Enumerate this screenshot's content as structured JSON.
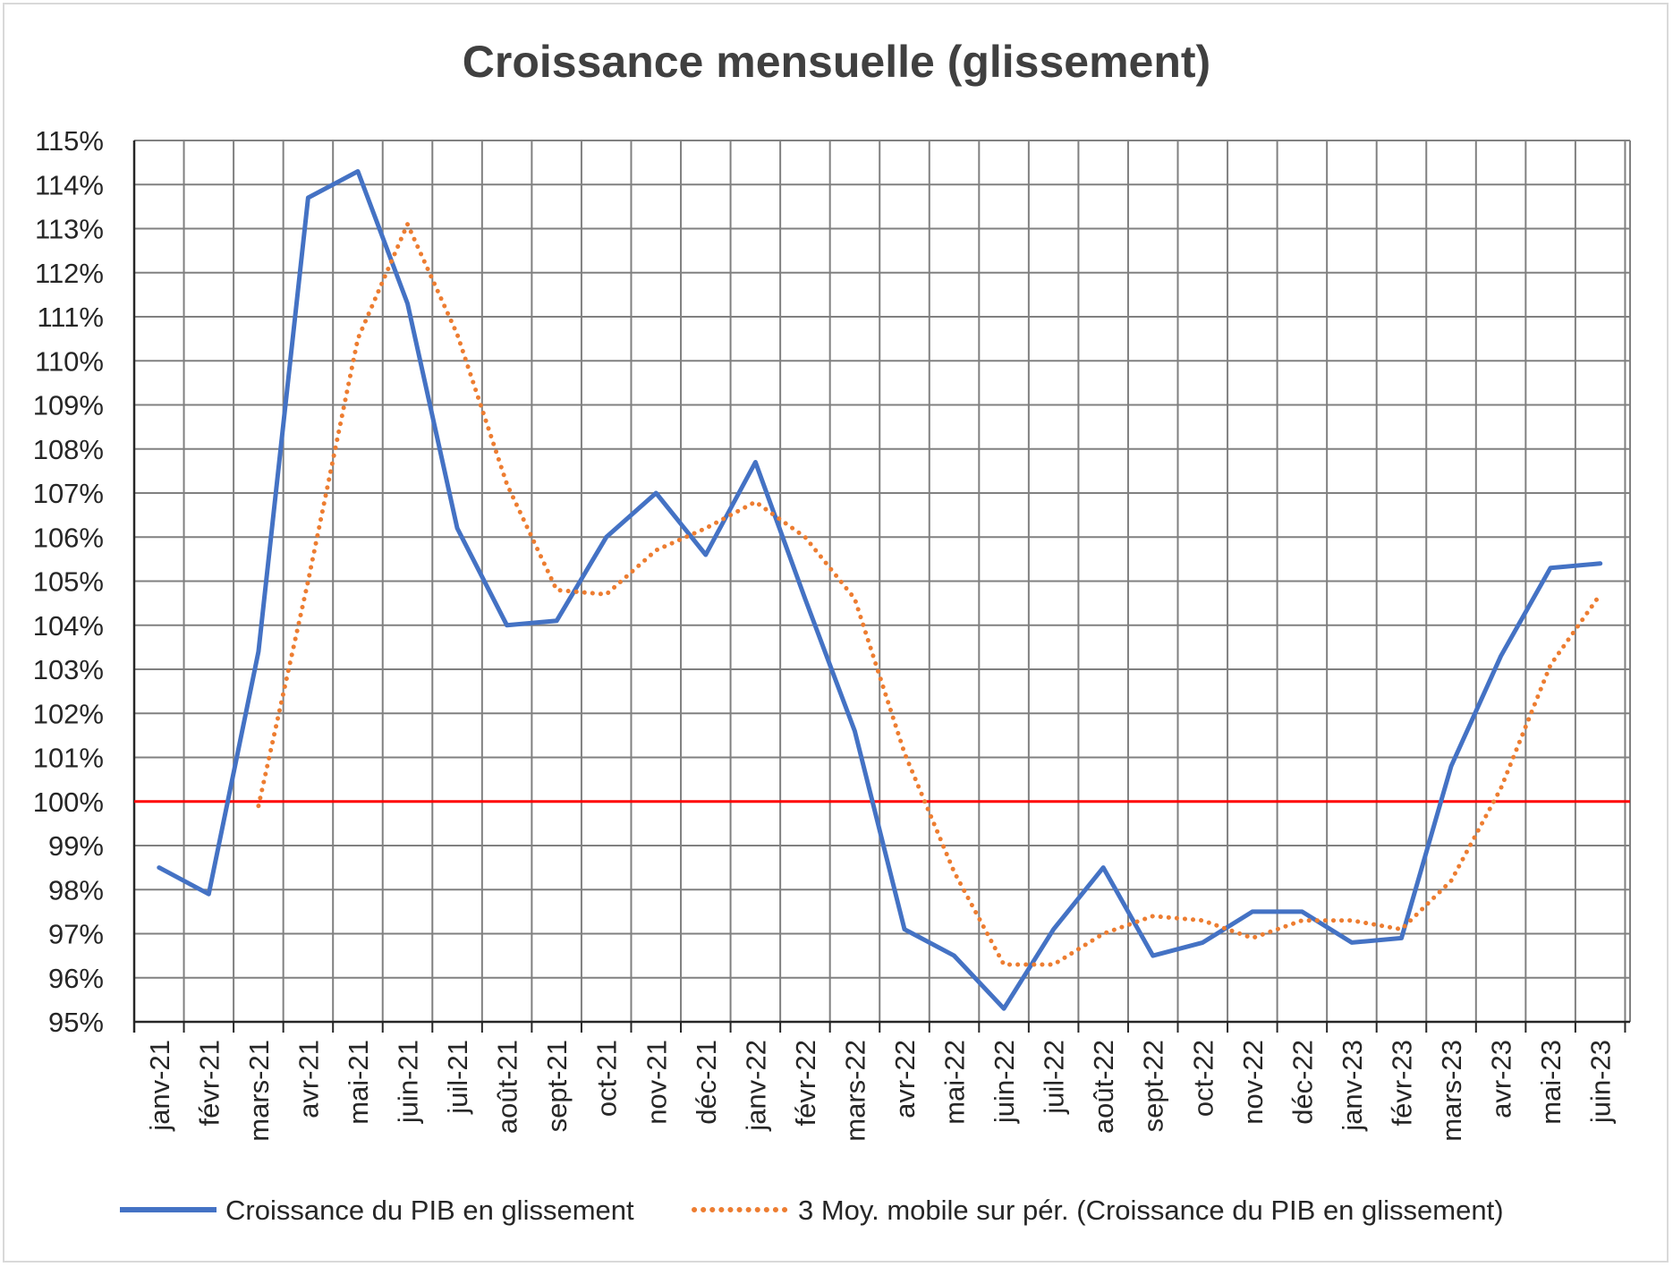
{
  "chart_data": {
    "type": "line",
    "title": "Croissance mensuelle (glissement)",
    "xlabel": "",
    "ylabel": "",
    "ylim": [
      95,
      115
    ],
    "y_unit": "%",
    "y_ticks": [
      "95%",
      "96%",
      "97%",
      "98%",
      "99%",
      "100%",
      "101%",
      "102%",
      "103%",
      "104%",
      "105%",
      "106%",
      "107%",
      "108%",
      "109%",
      "110%",
      "111%",
      "112%",
      "113%",
      "114%",
      "115%"
    ],
    "categories": [
      "janv-21",
      "févr-21",
      "mars-21",
      "avr-21",
      "mai-21",
      "juin-21",
      "juil-21",
      "août-21",
      "sept-21",
      "oct-21",
      "nov-21",
      "déc-21",
      "janv-22",
      "févr-22",
      "mars-22",
      "avr-22",
      "mai-22",
      "juin-22",
      "juil-22",
      "août-22",
      "sept-22",
      "oct-22",
      "nov-22",
      "déc-22",
      "janv-23",
      "févr-23",
      "mars-23",
      "avr-23",
      "mai-23",
      "juin-23"
    ],
    "series": [
      {
        "name": "Croissance du PIB en glissement",
        "color": "#4472c4",
        "style": "solid",
        "values": [
          98.5,
          97.9,
          103.4,
          113.7,
          114.3,
          111.3,
          106.2,
          104.0,
          104.1,
          106.0,
          107.0,
          105.6,
          107.7,
          104.6,
          101.6,
          97.1,
          96.5,
          95.3,
          97.1,
          98.5,
          96.5,
          96.8,
          97.5,
          97.5,
          96.8,
          96.9,
          100.8,
          103.3,
          105.3,
          105.4
        ]
      },
      {
        "name": "3 Moy. mobile sur pér. (Croissance du PIB en glissement)",
        "color": "#ed7d31",
        "style": "dotted",
        "values": [
          null,
          null,
          99.9,
          105.0,
          110.5,
          113.1,
          110.6,
          107.2,
          104.8,
          104.7,
          105.7,
          106.2,
          106.8,
          106.0,
          104.6,
          101.1,
          98.4,
          96.3,
          96.3,
          97.0,
          97.4,
          97.3,
          96.9,
          97.3,
          97.3,
          97.1,
          98.2,
          100.3,
          103.1,
          104.7
        ]
      }
    ],
    "reference_line": {
      "value": 100,
      "color": "#ff0000"
    },
    "grid": true,
    "legend_position": "bottom"
  },
  "colors": {
    "grid": "#808080",
    "axis": "#262626",
    "title": "#404040",
    "frame": "#d9d9d9"
  }
}
